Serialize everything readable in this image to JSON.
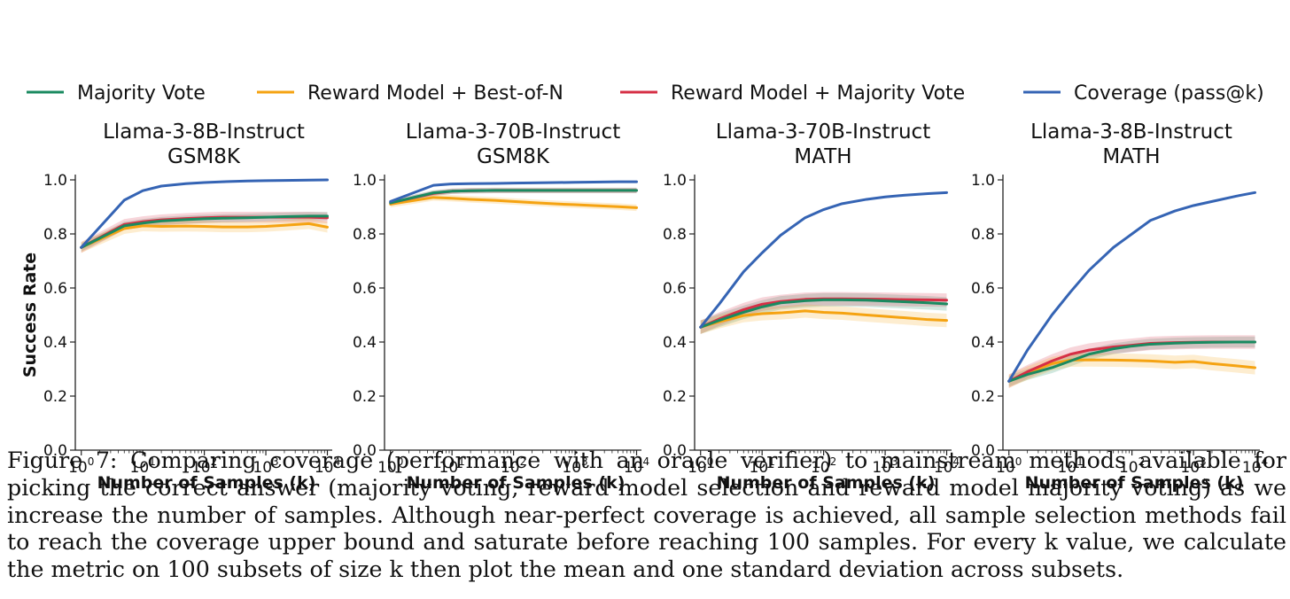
{
  "caption": "Figure 7: Comparing coverage (performance with an oracle verifier) to mainstream methods available for picking the correct answer (majority voting, reward model selection and reward model majority voting) as we increase the number of samples. Although near-perfect coverage is achieved, all sample selection methods fail to reach the coverage upper bound and saturate before reaching 100 samples. For every k value, we calculate the metric on 100 subsets of size k then plot the mean and one standard deviation across subsets.",
  "legend": [
    {
      "name": "Majority Vote",
      "color": "#1a8a60"
    },
    {
      "name": "Reward Model + Best-of-N",
      "color": "#f5a312"
    },
    {
      "name": "Reward Model + Majority Vote",
      "color": "#d62f45"
    },
    {
      "name": "Coverage (pass@k)",
      "color": "#3564b4"
    }
  ],
  "chart_data": [
    {
      "type": "line",
      "title": [
        "Llama-3-8B-Instruct",
        "GSM8K"
      ],
      "xlabel": "Number of Samples (k)",
      "ylabel": "Success Rate",
      "xscale": "log",
      "xlim": [
        0.8,
        12000
      ],
      "ylim": [
        0.0,
        1.0
      ],
      "xticks": [
        "10^0",
        "10^1",
        "10^2",
        "10^3",
        "10^4"
      ],
      "yticks": [
        "0.0",
        "0.2",
        "0.4",
        "0.6",
        "0.8",
        "1.0"
      ],
      "grid": false,
      "x": [
        1,
        5,
        10,
        20,
        50,
        100,
        200,
        500,
        1000,
        2000,
        5000,
        10000
      ],
      "series": [
        {
          "name": "Coverage (pass@k)",
          "values": [
            0.75,
            0.925,
            0.96,
            0.977,
            0.986,
            0.99,
            0.993,
            0.996,
            0.997,
            0.998,
            0.999,
            1.0
          ],
          "band": 0.0
        },
        {
          "name": "Majority Vote",
          "values": [
            0.75,
            0.83,
            0.84,
            0.848,
            0.853,
            0.856,
            0.858,
            0.86,
            0.862,
            0.864,
            0.866,
            0.866
          ],
          "band": 0.015
        },
        {
          "name": "Reward Model + Majority Vote",
          "values": [
            0.75,
            0.835,
            0.845,
            0.852,
            0.857,
            0.86,
            0.862,
            0.862,
            0.862,
            0.862,
            0.862,
            0.86
          ],
          "band": 0.02
        },
        {
          "name": "Reward Model + Best-of-N",
          "values": [
            0.75,
            0.82,
            0.83,
            0.828,
            0.829,
            0.828,
            0.826,
            0.826,
            0.828,
            0.832,
            0.838,
            0.825
          ],
          "band": 0.02
        }
      ]
    },
    {
      "type": "line",
      "title": [
        "Llama-3-70B-Instruct",
        "GSM8K"
      ],
      "xlabel": "Number of Samples (k)",
      "ylabel": "",
      "xscale": "log",
      "xlim": [
        0.8,
        12000
      ],
      "ylim": [
        0.0,
        1.0
      ],
      "xticks": [
        "10^0",
        "10^1",
        "10^2",
        "10^3",
        "10^4"
      ],
      "yticks": [
        "0.0",
        "0.2",
        "0.4",
        "0.6",
        "0.8",
        "1.0"
      ],
      "grid": false,
      "x": [
        1,
        5,
        10,
        20,
        50,
        100,
        200,
        500,
        1000,
        2000,
        5000,
        10000
      ],
      "series": [
        {
          "name": "Coverage (pass@k)",
          "values": [
            0.92,
            0.98,
            0.985,
            0.986,
            0.987,
            0.988,
            0.989,
            0.99,
            0.991,
            0.992,
            0.993,
            0.993
          ],
          "band": 0.0
        },
        {
          "name": "Majority Vote",
          "values": [
            0.915,
            0.952,
            0.958,
            0.96,
            0.961,
            0.961,
            0.961,
            0.961,
            0.961,
            0.961,
            0.961,
            0.961
          ],
          "band": 0.01
        },
        {
          "name": "Reward Model + Majority Vote",
          "values": [
            0.915,
            0.95,
            0.958,
            0.96,
            0.961,
            0.961,
            0.961,
            0.961,
            0.961,
            0.961,
            0.961,
            0.961
          ],
          "band": 0.01
        },
        {
          "name": "Reward Model + Best-of-N",
          "values": [
            0.91,
            0.935,
            0.932,
            0.928,
            0.924,
            0.92,
            0.916,
            0.911,
            0.908,
            0.905,
            0.901,
            0.897
          ],
          "band": 0.012
        }
      ]
    },
    {
      "type": "line",
      "title": [
        "Llama-3-70B-Instruct",
        "MATH"
      ],
      "xlabel": "Number of Samples (k)",
      "ylabel": "",
      "xscale": "log",
      "xlim": [
        0.8,
        12000
      ],
      "ylim": [
        0.0,
        1.0
      ],
      "xticks": [
        "10^0",
        "10^1",
        "10^2",
        "10^3",
        "10^4"
      ],
      "yticks": [
        "0.0",
        "0.2",
        "0.4",
        "0.6",
        "0.8",
        "1.0"
      ],
      "grid": false,
      "x": [
        1,
        2,
        5,
        10,
        20,
        50,
        100,
        200,
        500,
        1000,
        2000,
        5000,
        10000
      ],
      "series": [
        {
          "name": "Coverage (pass@k)",
          "values": [
            0.455,
            0.54,
            0.66,
            0.73,
            0.795,
            0.86,
            0.89,
            0.912,
            0.928,
            0.937,
            0.943,
            0.949,
            0.953
          ],
          "band": 0.0
        },
        {
          "name": "Majority Vote",
          "values": [
            0.455,
            0.48,
            0.51,
            0.53,
            0.545,
            0.553,
            0.556,
            0.556,
            0.555,
            0.552,
            0.549,
            0.545,
            0.541
          ],
          "band": 0.025
        },
        {
          "name": "Reward Model + Majority Vote",
          "values": [
            0.455,
            0.485,
            0.52,
            0.54,
            0.55,
            0.558,
            0.56,
            0.56,
            0.559,
            0.558,
            0.557,
            0.556,
            0.555
          ],
          "band": 0.025
        },
        {
          "name": "Reward Model + Best-of-N",
          "values": [
            0.455,
            0.475,
            0.498,
            0.505,
            0.508,
            0.515,
            0.51,
            0.507,
            0.5,
            0.495,
            0.49,
            0.483,
            0.48
          ],
          "band": 0.025
        }
      ]
    },
    {
      "type": "line",
      "title": [
        "Llama-3-8B-Instruct",
        "MATH"
      ],
      "xlabel": "Number of Samples (k)",
      "ylabel": "",
      "xscale": "log",
      "xlim": [
        0.8,
        12000
      ],
      "ylim": [
        0.0,
        1.0
      ],
      "xticks": [
        "10^0",
        "10^1",
        "10^2",
        "10^3",
        "10^4"
      ],
      "yticks": [
        "0.0",
        "0.2",
        "0.4",
        "0.6",
        "0.8",
        "1.0"
      ],
      "grid": false,
      "x": [
        1,
        2,
        5,
        10,
        20,
        50,
        100,
        200,
        500,
        1000,
        2000,
        5000,
        10000
      ],
      "series": [
        {
          "name": "Coverage (pass@k)",
          "values": [
            0.255,
            0.37,
            0.5,
            0.585,
            0.665,
            0.75,
            0.8,
            0.85,
            0.885,
            0.905,
            0.92,
            0.94,
            0.953
          ],
          "band": 0.0
        },
        {
          "name": "Majority Vote",
          "values": [
            0.255,
            0.28,
            0.305,
            0.33,
            0.355,
            0.375,
            0.385,
            0.392,
            0.396,
            0.398,
            0.399,
            0.4,
            0.4
          ],
          "band": 0.02
        },
        {
          "name": "Reward Model + Majority Vote",
          "values": [
            0.255,
            0.29,
            0.33,
            0.355,
            0.37,
            0.382,
            0.388,
            0.395,
            0.398,
            0.399,
            0.4,
            0.4,
            0.4
          ],
          "band": 0.025
        },
        {
          "name": "Reward Model + Best-of-N",
          "values": [
            0.255,
            0.285,
            0.32,
            0.333,
            0.334,
            0.333,
            0.332,
            0.33,
            0.325,
            0.328,
            0.32,
            0.312,
            0.305
          ],
          "band": 0.025
        }
      ]
    }
  ]
}
